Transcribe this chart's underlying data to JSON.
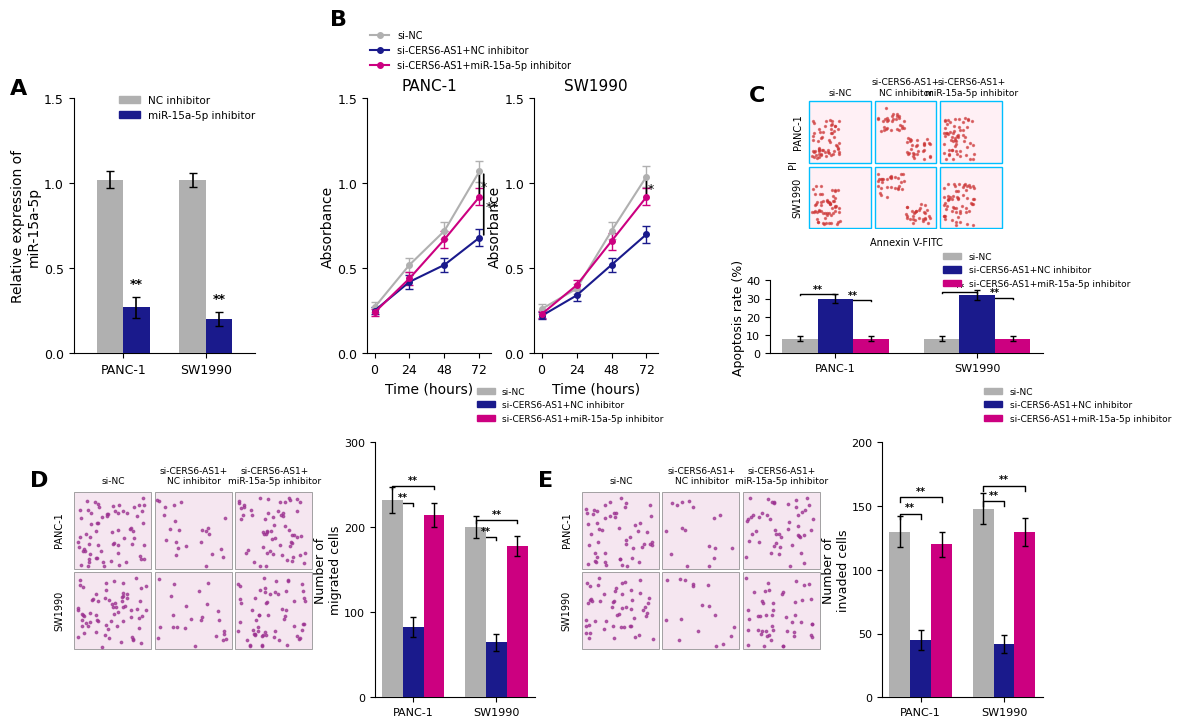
{
  "panel_A": {
    "categories": [
      "PANC-1",
      "SW1990"
    ],
    "NC_inhibitor": [
      1.02,
      1.02
    ],
    "miR_inhibitor": [
      0.27,
      0.2
    ],
    "NC_err": [
      0.05,
      0.04
    ],
    "miR_err": [
      0.06,
      0.04
    ],
    "ylabel": "Relative expression of\nmiR-15a-5p",
    "ylim": [
      0,
      1.5
    ],
    "yticks": [
      0.0,
      0.5,
      1.0,
      1.5
    ],
    "colors": [
      "#b0b0b0",
      "#1a1a8c"
    ],
    "legend": [
      "NC inhibitor",
      "miR-15a-5p inhibitor"
    ]
  },
  "panel_B": {
    "timepoints": [
      0,
      24,
      48,
      72
    ],
    "PANC1": {
      "siNC": [
        0.27,
        0.52,
        0.72,
        1.07
      ],
      "siCERS_NC": [
        0.25,
        0.42,
        0.52,
        0.68
      ],
      "siCERS_miR": [
        0.24,
        0.44,
        0.67,
        0.92
      ]
    },
    "PANC1_err": {
      "siNC": [
        0.03,
        0.04,
        0.05,
        0.06
      ],
      "siCERS_NC": [
        0.02,
        0.04,
        0.04,
        0.05
      ],
      "siCERS_miR": [
        0.02,
        0.04,
        0.05,
        0.05
      ]
    },
    "SW1990": {
      "siNC": [
        0.26,
        0.38,
        0.72,
        1.04
      ],
      "siCERS_NC": [
        0.22,
        0.34,
        0.52,
        0.7
      ],
      "siCERS_miR": [
        0.23,
        0.4,
        0.66,
        0.92
      ]
    },
    "SW1990_err": {
      "siNC": [
        0.03,
        0.03,
        0.05,
        0.06
      ],
      "siCERS_NC": [
        0.02,
        0.03,
        0.04,
        0.05
      ],
      "siCERS_miR": [
        0.02,
        0.03,
        0.05,
        0.05
      ]
    },
    "ylabel": "Absorbance",
    "ylim": [
      0.0,
      1.5
    ],
    "yticks": [
      0.0,
      0.5,
      1.0,
      1.5
    ],
    "xlabel": "Time (hours)",
    "colors": [
      "#b0b0b0",
      "#1a1a8c",
      "#cc0080"
    ],
    "legend": [
      "si-NC",
      "si-CERS6-AS1+NC inhibitor",
      "si-CERS6-AS1+miR-15a-5p inhibitor"
    ]
  },
  "panel_D_bar": {
    "groups": [
      "PANC-1",
      "SW1990"
    ],
    "siNC": [
      232,
      200
    ],
    "siCERS_NC": [
      83,
      65
    ],
    "siCERS_miR": [
      215,
      178
    ],
    "siNC_err": [
      15,
      13
    ],
    "siCERS_NC_err": [
      12,
      10
    ],
    "siCERS_miR_err": [
      14,
      12
    ],
    "ylabel": "Number of\nmigrated cells",
    "ylim": [
      0,
      300
    ],
    "yticks": [
      0,
      100,
      200,
      300
    ],
    "colors": [
      "#b0b0b0",
      "#1a1a8c",
      "#cc0080"
    ],
    "legend": [
      "si-NC",
      "si-CERS6-AS1+NC inhibitor",
      "si-CERS6-AS1+miR-15a-5p inhibitor"
    ]
  },
  "panel_E_bar": {
    "groups": [
      "PANC-1",
      "SW1990"
    ],
    "siNC": [
      130,
      148
    ],
    "siCERS_NC": [
      45,
      42
    ],
    "siCERS_miR": [
      120,
      130
    ],
    "siNC_err": [
      12,
      12
    ],
    "siCERS_NC_err": [
      8,
      7
    ],
    "siCERS_miR_err": [
      10,
      11
    ],
    "ylabel": "Number of\ninvaded cells",
    "ylim": [
      0,
      200
    ],
    "yticks": [
      0,
      50,
      100,
      150,
      200
    ],
    "colors": [
      "#b0b0b0",
      "#1a1a8c",
      "#cc0080"
    ],
    "legend": [
      "si-NC",
      "si-CERS6-AS1+NC inhibitor",
      "si-CERS6-AS1+miR-15a-5p inhibitor"
    ]
  },
  "panel_C_bar": {
    "groups": [
      "PANC-1",
      "SW1990"
    ],
    "siNC": [
      8,
      8
    ],
    "siCERS_NC": [
      30,
      32
    ],
    "siCERS_miR": [
      8,
      8
    ],
    "siNC_err": [
      1.5,
      1.5
    ],
    "siCERS_NC_err": [
      2.5,
      2.5
    ],
    "siCERS_miR_err": [
      1.5,
      1.5
    ],
    "ylabel": "Apoptosis rate (%)",
    "ylim": [
      0,
      40
    ],
    "yticks": [
      0,
      10,
      20,
      30,
      40
    ],
    "colors": [
      "#b0b0b0",
      "#1a1a8c",
      "#cc0080"
    ],
    "legend": [
      "si-NC",
      "si-CERS6-AS1+NC inhibitor",
      "si-CERS6-AS1+miR-15a-5p inhibitor"
    ]
  },
  "bg_color": "#ffffff",
  "label_fontsize": 10,
  "tick_fontsize": 9,
  "title_fontsize": 11,
  "panel_label_fontsize": 16,
  "bar_width": 0.25,
  "cell_image_color_purple": "#c060a0",
  "cell_image_color_light": "#e8c8e0"
}
